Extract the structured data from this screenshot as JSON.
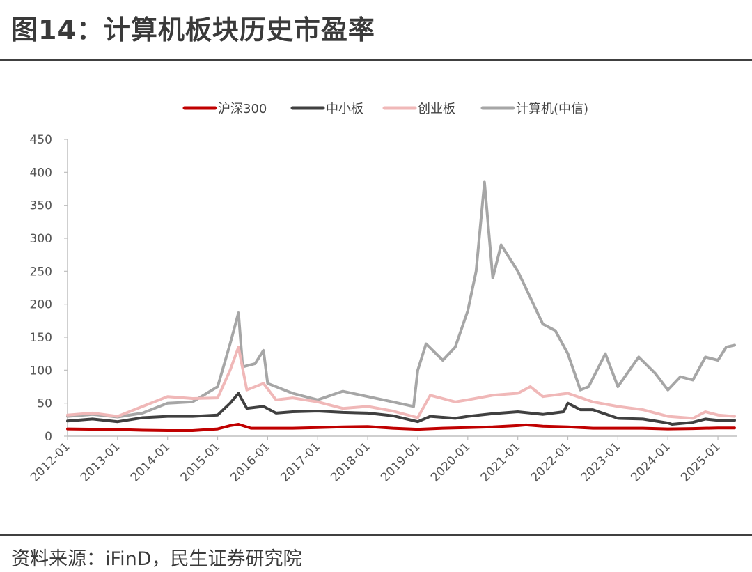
{
  "header": {
    "title": "图14：计算机板块历史市盈率"
  },
  "footer": {
    "source": "资料来源：iFinD，民生证券研究院"
  },
  "chart_data": {
    "type": "line",
    "title": "",
    "xlabel": "",
    "ylabel": "",
    "ylim": [
      0,
      450
    ],
    "y_ticks": [
      "0",
      "50",
      "100",
      "150",
      "200",
      "250",
      "300",
      "350",
      "400",
      "450"
    ],
    "x_ticks": [
      "2012-01",
      "2013-01",
      "2014-01",
      "2015-01",
      "2016-01",
      "2017-01",
      "2018-01",
      "2019-01",
      "2020-01",
      "2021-01",
      "2022-01",
      "2023-01",
      "2024-01",
      "2025-01"
    ],
    "grid": false,
    "legend": "top",
    "series": [
      {
        "name": "沪深300",
        "color": "#c00000",
        "points": [
          [
            "2012-01",
            11
          ],
          [
            "2012-07",
            10.5
          ],
          [
            "2013-01",
            10
          ],
          [
            "2013-07",
            9
          ],
          [
            "2014-01",
            8.5
          ],
          [
            "2014-07",
            8.5
          ],
          [
            "2015-01",
            11
          ],
          [
            "2015-04",
            16
          ],
          [
            "2015-06",
            18
          ],
          [
            "2015-09",
            12
          ],
          [
            "2016-01",
            12
          ],
          [
            "2016-07",
            12
          ],
          [
            "2017-01",
            13
          ],
          [
            "2017-07",
            14
          ],
          [
            "2018-01",
            14.5
          ],
          [
            "2018-07",
            12
          ],
          [
            "2019-01",
            10.5
          ],
          [
            "2019-07",
            12
          ],
          [
            "2020-01",
            13
          ],
          [
            "2020-07",
            14
          ],
          [
            "2021-01",
            16
          ],
          [
            "2021-03",
            17
          ],
          [
            "2021-07",
            15
          ],
          [
            "2022-01",
            14
          ],
          [
            "2022-07",
            12
          ],
          [
            "2023-01",
            12
          ],
          [
            "2023-07",
            12
          ],
          [
            "2024-01",
            11
          ],
          [
            "2024-07",
            11.5
          ],
          [
            "2025-01",
            12.5
          ],
          [
            "2025-05",
            12.5
          ]
        ]
      },
      {
        "name": "中小板",
        "color": "#404040",
        "points": [
          [
            "2012-01",
            23
          ],
          [
            "2012-07",
            26
          ],
          [
            "2013-01",
            22
          ],
          [
            "2013-07",
            28
          ],
          [
            "2014-01",
            30
          ],
          [
            "2014-07",
            30
          ],
          [
            "2015-01",
            32
          ],
          [
            "2015-04",
            50
          ],
          [
            "2015-06",
            65
          ],
          [
            "2015-08",
            42
          ],
          [
            "2015-12",
            45
          ],
          [
            "2016-03",
            35
          ],
          [
            "2016-07",
            37
          ],
          [
            "2017-01",
            38
          ],
          [
            "2017-07",
            36
          ],
          [
            "2018-01",
            35
          ],
          [
            "2018-07",
            31
          ],
          [
            "2019-01",
            22
          ],
          [
            "2019-04",
            30
          ],
          [
            "2019-10",
            27
          ],
          [
            "2020-01",
            30
          ],
          [
            "2020-07",
            34
          ],
          [
            "2021-01",
            37
          ],
          [
            "2021-07",
            33
          ],
          [
            "2021-12",
            37
          ],
          [
            "2022-01",
            50
          ],
          [
            "2022-04",
            40
          ],
          [
            "2022-07",
            40
          ],
          [
            "2023-01",
            27
          ],
          [
            "2023-07",
            26
          ],
          [
            "2024-01",
            20
          ],
          [
            "2024-02",
            18
          ],
          [
            "2024-07",
            21
          ],
          [
            "2024-10",
            26
          ],
          [
            "2025-01",
            24
          ],
          [
            "2025-05",
            24
          ]
        ]
      },
      {
        "name": "创业板",
        "color": "#f0b8b8",
        "points": [
          [
            "2012-01",
            32
          ],
          [
            "2012-07",
            35
          ],
          [
            "2013-01",
            30
          ],
          [
            "2013-07",
            45
          ],
          [
            "2014-01",
            60
          ],
          [
            "2014-07",
            57
          ],
          [
            "2015-01",
            58
          ],
          [
            "2015-04",
            100
          ],
          [
            "2015-06",
            135
          ],
          [
            "2015-08",
            70
          ],
          [
            "2015-12",
            80
          ],
          [
            "2016-03",
            55
          ],
          [
            "2016-07",
            58
          ],
          [
            "2017-01",
            52
          ],
          [
            "2017-07",
            42
          ],
          [
            "2018-01",
            45
          ],
          [
            "2018-07",
            38
          ],
          [
            "2019-01",
            28
          ],
          [
            "2019-04",
            62
          ],
          [
            "2019-10",
            52
          ],
          [
            "2020-01",
            55
          ],
          [
            "2020-07",
            62
          ],
          [
            "2021-01",
            65
          ],
          [
            "2021-04",
            75
          ],
          [
            "2021-07",
            60
          ],
          [
            "2022-01",
            65
          ],
          [
            "2022-07",
            52
          ],
          [
            "2023-01",
            45
          ],
          [
            "2023-07",
            40
          ],
          [
            "2024-01",
            30
          ],
          [
            "2024-07",
            27
          ],
          [
            "2024-10",
            37
          ],
          [
            "2025-01",
            32
          ],
          [
            "2025-05",
            30
          ]
        ]
      },
      {
        "name": "计算机(中信)",
        "color": "#a6a6a6",
        "points": [
          [
            "2012-01",
            30
          ],
          [
            "2012-07",
            33
          ],
          [
            "2013-01",
            29
          ],
          [
            "2013-07",
            35
          ],
          [
            "2014-01",
            50
          ],
          [
            "2014-07",
            52
          ],
          [
            "2015-01",
            75
          ],
          [
            "2015-04",
            140
          ],
          [
            "2015-06",
            187
          ],
          [
            "2015-07",
            105
          ],
          [
            "2015-10",
            110
          ],
          [
            "2015-12",
            130
          ],
          [
            "2016-01",
            80
          ],
          [
            "2016-07",
            65
          ],
          [
            "2017-01",
            55
          ],
          [
            "2017-07",
            68
          ],
          [
            "2018-01",
            60
          ],
          [
            "2018-07",
            52
          ],
          [
            "2018-12",
            45
          ],
          [
            "2019-01",
            100
          ],
          [
            "2019-03",
            140
          ],
          [
            "2019-07",
            115
          ],
          [
            "2019-10",
            135
          ],
          [
            "2020-01",
            190
          ],
          [
            "2020-03",
            250
          ],
          [
            "2020-05",
            385
          ],
          [
            "2020-07",
            240
          ],
          [
            "2020-09",
            290
          ],
          [
            "2021-01",
            250
          ],
          [
            "2021-07",
            170
          ],
          [
            "2021-10",
            160
          ],
          [
            "2022-01",
            125
          ],
          [
            "2022-04",
            70
          ],
          [
            "2022-06",
            75
          ],
          [
            "2022-10",
            125
          ],
          [
            "2023-01",
            75
          ],
          [
            "2023-06",
            120
          ],
          [
            "2023-10",
            95
          ],
          [
            "2024-01",
            70
          ],
          [
            "2024-04",
            90
          ],
          [
            "2024-07",
            85
          ],
          [
            "2024-10",
            120
          ],
          [
            "2025-01",
            115
          ],
          [
            "2025-03",
            135
          ],
          [
            "2025-05",
            138
          ]
        ]
      }
    ]
  }
}
